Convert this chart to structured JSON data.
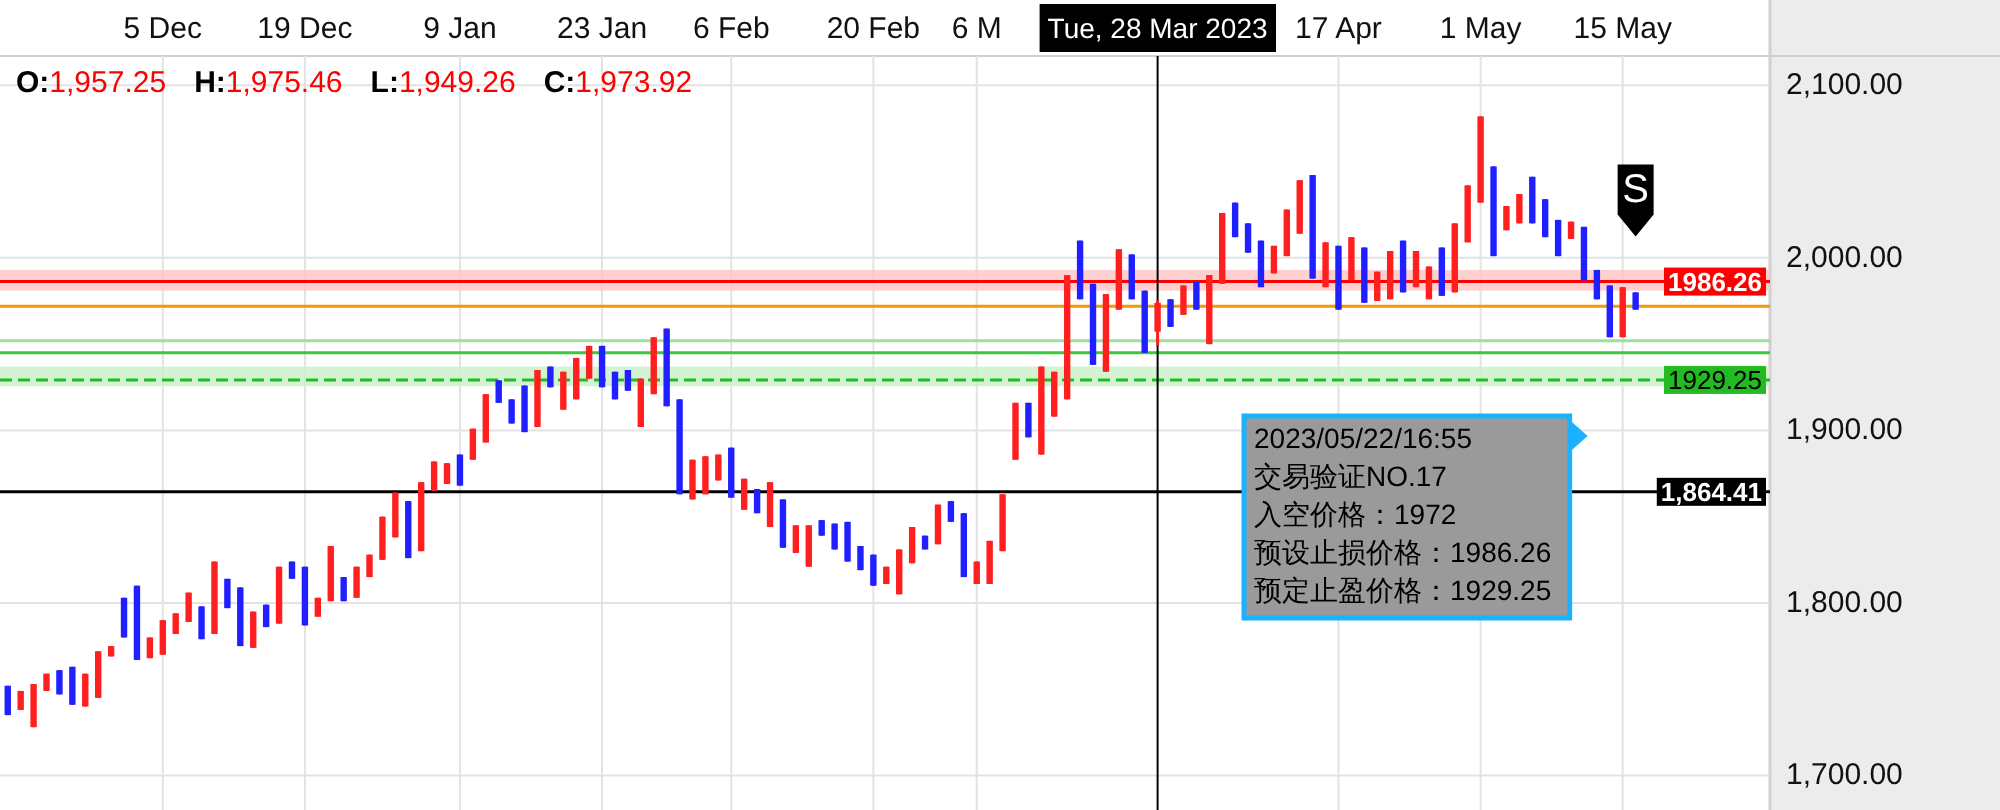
{
  "chart_data": {
    "type": "candlestick",
    "categories": [
      null,
      null,
      null,
      null,
      null,
      null,
      null,
      null,
      null,
      null,
      null,
      null,
      "5 Dec",
      null,
      null,
      null,
      null,
      null,
      null,
      null,
      null,
      null,
      null,
      "19 Dec",
      null,
      null,
      null,
      null,
      null,
      null,
      null,
      null,
      null,
      null,
      null,
      "9 Jan",
      null,
      null,
      null,
      null,
      null,
      null,
      null,
      null,
      null,
      null,
      "23 Jan",
      null,
      null,
      null,
      null,
      null,
      null,
      null,
      null,
      null,
      "6 Feb",
      null,
      null,
      null,
      null,
      null,
      null,
      null,
      null,
      null,
      null,
      "20 Feb",
      null,
      null,
      null,
      null,
      null,
      null,
      null,
      "6 M",
      null,
      null,
      null,
      null,
      null,
      null,
      null,
      null,
      null,
      null,
      null,
      null,
      null,
      "Tue, 28 Mar 2023",
      null,
      null,
      null,
      null,
      null,
      null,
      null,
      null,
      null,
      null,
      null,
      null,
      null,
      "17 Apr",
      null,
      null,
      null,
      null,
      null,
      null,
      null,
      null,
      null,
      null,
      "1 May",
      null,
      null,
      null,
      null,
      null,
      null,
      null,
      null,
      null,
      null,
      "15 May",
      null
    ],
    "ohlc": [
      [
        1752,
        1752,
        1735,
        1735
      ],
      [
        1738,
        1749,
        1738,
        1749
      ],
      [
        1728,
        1753,
        1728,
        1753
      ],
      [
        1749,
        1759,
        1749,
        1759
      ],
      [
        1761,
        1761,
        1747,
        1747
      ],
      [
        1763,
        1763,
        1741,
        1741
      ],
      [
        1740,
        1759,
        1740,
        1759
      ],
      [
        1745,
        1772,
        1745,
        1772
      ],
      [
        1769,
        1775,
        1769,
        1775
      ],
      [
        1803,
        1803,
        1780,
        1780
      ],
      [
        1810,
        1810,
        1767,
        1767
      ],
      [
        1768,
        1780,
        1768,
        1780
      ],
      [
        1770,
        1790,
        1770,
        1790
      ],
      [
        1782,
        1794,
        1782,
        1794
      ],
      [
        1789,
        1806,
        1789,
        1806
      ],
      [
        1798,
        1798,
        1779,
        1779
      ],
      [
        1782,
        1824,
        1782,
        1824
      ],
      [
        1814,
        1814,
        1797,
        1797
      ],
      [
        1809,
        1809,
        1775,
        1775
      ],
      [
        1774,
        1795,
        1774,
        1795
      ],
      [
        1799,
        1799,
        1786,
        1786
      ],
      [
        1788,
        1821,
        1788,
        1821
      ],
      [
        1824,
        1824,
        1814,
        1814
      ],
      [
        1821,
        1821,
        1787,
        1787
      ],
      [
        1792,
        1803,
        1792,
        1803
      ],
      [
        1801,
        1833,
        1801,
        1833
      ],
      [
        1815,
        1815,
        1801,
        1801
      ],
      [
        1803,
        1821,
        1803,
        1821
      ],
      [
        1815,
        1828,
        1815,
        1828
      ],
      [
        1825,
        1850,
        1825,
        1850
      ],
      [
        1838,
        1864,
        1838,
        1864
      ],
      [
        1859,
        1859,
        1826,
        1826
      ],
      [
        1830,
        1870,
        1830,
        1870
      ],
      [
        1865,
        1882,
        1865,
        1882
      ],
      [
        1869,
        1881,
        1869,
        1881
      ],
      [
        1886,
        1886,
        1868,
        1868
      ],
      [
        1883,
        1901,
        1883,
        1901
      ],
      [
        1893,
        1921,
        1893,
        1921
      ],
      [
        1929,
        1929,
        1916,
        1916
      ],
      [
        1918,
        1918,
        1904,
        1904
      ],
      [
        1926,
        1926,
        1899,
        1899
      ],
      [
        1902,
        1935,
        1902,
        1935
      ],
      [
        1937,
        1937,
        1925,
        1925
      ],
      [
        1912,
        1934,
        1912,
        1934
      ],
      [
        1918,
        1942,
        1918,
        1942
      ],
      [
        1930,
        1949,
        1930,
        1949
      ],
      [
        1949,
        1949,
        1925,
        1925
      ],
      [
        1934,
        1934,
        1918,
        1918
      ],
      [
        1935,
        1935,
        1923,
        1923
      ],
      [
        1902,
        1930,
        1902,
        1930
      ],
      [
        1921,
        1954,
        1921,
        1954
      ],
      [
        1959,
        1959,
        1914,
        1914
      ],
      [
        1918,
        1918,
        1863,
        1863
      ],
      [
        1860,
        1883,
        1860,
        1883
      ],
      [
        1863,
        1885,
        1863,
        1885
      ],
      [
        1871,
        1886,
        1871,
        1886
      ],
      [
        1890,
        1890,
        1861,
        1861
      ],
      [
        1854,
        1872,
        1854,
        1872
      ],
      [
        1866,
        1866,
        1852,
        1852
      ],
      [
        1844,
        1870,
        1844,
        1870
      ],
      [
        1860,
        1860,
        1832,
        1832
      ],
      [
        1829,
        1845,
        1829,
        1845
      ],
      [
        1821,
        1845,
        1821,
        1845
      ],
      [
        1848,
        1848,
        1839,
        1839
      ],
      [
        1846,
        1846,
        1831,
        1831
      ],
      [
        1847,
        1847,
        1824,
        1824
      ],
      [
        1833,
        1833,
        1819,
        1819
      ],
      [
        1828,
        1828,
        1810,
        1810
      ],
      [
        1811,
        1821,
        1811,
        1821
      ],
      [
        1805,
        1831,
        1805,
        1831
      ],
      [
        1823,
        1844,
        1823,
        1844
      ],
      [
        1839,
        1839,
        1831,
        1831
      ],
      [
        1834,
        1857,
        1834,
        1857
      ],
      [
        1859,
        1859,
        1847,
        1847
      ],
      [
        1852,
        1852,
        1815,
        1815
      ],
      [
        1811,
        1824,
        1811,
        1824
      ],
      [
        1811,
        1836,
        1811,
        1836
      ],
      [
        1830,
        1863,
        1830,
        1863
      ],
      [
        1883,
        1916,
        1883,
        1916
      ],
      [
        1916,
        1916,
        1896,
        1896
      ],
      [
        1886,
        1937,
        1886,
        1937
      ],
      [
        1908,
        1934,
        1908,
        1934
      ],
      [
        1918,
        1990,
        1918,
        1990
      ],
      [
        2010,
        2010,
        1976,
        1976
      ],
      [
        1985,
        1985,
        1938,
        1938
      ],
      [
        1934,
        1979,
        1934,
        1979
      ],
      [
        1970,
        2005,
        1970,
        2005
      ],
      [
        2002,
        2002,
        1976,
        1976
      ],
      [
        1981,
        1981,
        1945,
        1945
      ],
      [
        1957.25,
        1975.46,
        1949.26,
        1973.92
      ],
      [
        1976,
        1976,
        1960,
        1960
      ],
      [
        1967,
        1984,
        1967,
        1984
      ],
      [
        1986,
        1986,
        1970,
        1970
      ],
      [
        1950,
        1990,
        1950,
        1990
      ],
      [
        1985,
        2026,
        1985,
        2026
      ],
      [
        2032,
        2032,
        2012,
        2012
      ],
      [
        2020,
        2020,
        2003,
        2003
      ],
      [
        2010,
        2010,
        1983,
        1983
      ],
      [
        1991,
        2007,
        1991,
        2007
      ],
      [
        2001,
        2028,
        2001,
        2028
      ],
      [
        2014,
        2045,
        2014,
        2045
      ],
      [
        2048,
        2048,
        1988,
        1988
      ],
      [
        1983,
        2009,
        1983,
        2009
      ],
      [
        2007,
        2007,
        1970,
        1970
      ],
      [
        1987,
        2012,
        1987,
        2012
      ],
      [
        2006,
        2006,
        1974,
        1974
      ],
      [
        1975,
        1992,
        1975,
        1992
      ],
      [
        1976,
        2004,
        1976,
        2004
      ],
      [
        2010,
        2010,
        1980,
        1980
      ],
      [
        1983,
        2004,
        1983,
        2004
      ],
      [
        1976,
        1995,
        1976,
        1995
      ],
      [
        2006,
        2006,
        1978,
        1978
      ],
      [
        1980,
        2020,
        1980,
        2020
      ],
      [
        2009,
        2042,
        2009,
        2042
      ],
      [
        2032,
        2082,
        2032,
        2082
      ],
      [
        2053,
        2053,
        2001,
        2001
      ],
      [
        2016,
        2030,
        2016,
        2030
      ],
      [
        2020,
        2037,
        2020,
        2037
      ],
      [
        2047,
        2047,
        2020,
        2020
      ],
      [
        2034,
        2034,
        2012,
        2012
      ],
      [
        2022,
        2022,
        2001,
        2001
      ],
      [
        2011,
        2021,
        2011,
        2021
      ],
      [
        2018,
        2018,
        1987,
        1987
      ],
      [
        1993,
        1993,
        1976,
        1976
      ],
      [
        1984,
        1984,
        1954,
        1954
      ],
      [
        1954,
        1983,
        1954,
        1983
      ],
      [
        1980,
        1980,
        1970,
        1970
      ]
    ],
    "colors": [
      "#1f1fff",
      "#ff1f1f",
      "#ff1f1f",
      "#ff1f1f",
      "#1f1fff",
      "#1f1fff",
      "#ff1f1f",
      "#ff1f1f",
      "#ff1f1f",
      "#1f1fff",
      "#1f1fff",
      "#ff1f1f",
      "#ff1f1f",
      "#ff1f1f",
      "#ff1f1f",
      "#1f1fff",
      "#ff1f1f",
      "#1f1fff",
      "#1f1fff",
      "#ff1f1f",
      "#1f1fff",
      "#ff1f1f",
      "#1f1fff",
      "#1f1fff",
      "#ff1f1f",
      "#ff1f1f",
      "#1f1fff",
      "#ff1f1f",
      "#ff1f1f",
      "#ff1f1f",
      "#ff1f1f",
      "#1f1fff",
      "#ff1f1f",
      "#ff1f1f",
      "#ff1f1f",
      "#1f1fff",
      "#ff1f1f",
      "#ff1f1f",
      "#1f1fff",
      "#1f1fff",
      "#1f1fff",
      "#ff1f1f",
      "#1f1fff",
      "#ff1f1f",
      "#ff1f1f",
      "#ff1f1f",
      "#1f1fff",
      "#1f1fff",
      "#1f1fff",
      "#ff1f1f",
      "#ff1f1f",
      "#1f1fff",
      "#1f1fff",
      "#ff1f1f",
      "#ff1f1f",
      "#ff1f1f",
      "#1f1fff",
      "#ff1f1f",
      "#1f1fff",
      "#ff1f1f",
      "#1f1fff",
      "#ff1f1f",
      "#ff1f1f",
      "#1f1fff",
      "#1f1fff",
      "#1f1fff",
      "#1f1fff",
      "#1f1fff",
      "#ff1f1f",
      "#ff1f1f",
      "#ff1f1f",
      "#1f1fff",
      "#ff1f1f",
      "#1f1fff",
      "#1f1fff",
      "#ff1f1f",
      "#ff1f1f",
      "#ff1f1f",
      "#ff1f1f",
      "#1f1fff",
      "#ff1f1f",
      "#ff1f1f",
      "#ff1f1f",
      "#1f1fff",
      "#1f1fff",
      "#ff1f1f",
      "#ff1f1f",
      "#1f1fff",
      "#1f1fff",
      "#ff1f1f",
      "#1f1fff",
      "#ff1f1f",
      "#1f1fff",
      "#ff1f1f",
      "#ff1f1f",
      "#1f1fff",
      "#1f1fff",
      "#1f1fff",
      "#ff1f1f",
      "#ff1f1f",
      "#ff1f1f",
      "#1f1fff",
      "#ff1f1f",
      "#1f1fff",
      "#ff1f1f",
      "#1f1fff",
      "#ff1f1f",
      "#ff1f1f",
      "#1f1fff",
      "#ff1f1f",
      "#ff1f1f",
      "#1f1fff",
      "#ff1f1f",
      "#ff1f1f",
      "#ff1f1f",
      "#1f1fff",
      "#ff1f1f",
      "#ff1f1f",
      "#1f1fff",
      "#1f1fff",
      "#1f1fff",
      "#ff1f1f",
      "#1f1fff",
      "#1f1fff",
      "#1f1fff",
      "#ff1f1f",
      "#1f1fff"
    ],
    "ylim": [
      1680,
      2117
    ],
    "yticks": [
      {
        "value": 1700,
        "label": "1,700.00"
      },
      {
        "value": 1800,
        "label": "1,800.00"
      },
      {
        "value": 1900,
        "label": "1,900.00"
      },
      {
        "value": 2000,
        "label": "2,000.00"
      },
      {
        "value": 2100,
        "label": "2,100.00"
      }
    ],
    "grid": true,
    "bands": [
      {
        "axis": "y",
        "from": 1981,
        "to": 1993,
        "color": "#ffc4c4"
      },
      {
        "axis": "y",
        "from": 1925.6,
        "to": 1937,
        "color": "#c8f0c8"
      }
    ],
    "ref_lines": [
      {
        "axis": "y",
        "value": 1986.26,
        "label": "1986.26",
        "color": "#ff0000"
      },
      {
        "axis": "y",
        "value": 1972,
        "color": "#f59a00"
      },
      {
        "axis": "y",
        "value": 1952,
        "color": "#9ee09e"
      },
      {
        "axis": "y",
        "value": 1945,
        "color": "#3cc83c"
      },
      {
        "axis": "y",
        "value": 1929.25,
        "label": "1929.25",
        "color": "#22bb22",
        "line_style": "dashed"
      },
      {
        "axis": "y",
        "value": 1864.41,
        "label": "1,864.41",
        "color": "#000000"
      },
      {
        "axis": "x",
        "value": "Tue, 28 Mar 2023",
        "color": "#000000"
      }
    ],
    "annotations": [
      "O:1,957.25",
      "H:1,975.46",
      "L:1,949.26",
      "C:1,973.92",
      "2023/05/22/16:55\n交易验证NO.17\n入空价格：1972\n预设止损价格：1986.26\n预定止盈价格：1929.25",
      "S"
    ]
  }
}
